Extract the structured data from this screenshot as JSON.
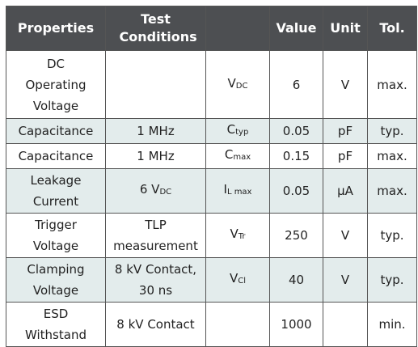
{
  "table": {
    "headers": [
      "Properties",
      "Test Conditions",
      "",
      "Value",
      "Unit",
      "Tol."
    ],
    "rows": [
      {
        "property": "DC Operating Voltage",
        "condition": "",
        "symbol": "V",
        "symbol_sub": "DC",
        "value": "6",
        "unit": "V",
        "tol": "max."
      },
      {
        "property": "Capacitance",
        "condition": "1 MHz",
        "symbol": "C",
        "symbol_sub": "typ",
        "value": "0.05",
        "unit": "pF",
        "tol": "typ."
      },
      {
        "property": "Capacitance",
        "condition": "1 MHz",
        "symbol": "C",
        "symbol_sub": "max",
        "value": "0.15",
        "unit": "pF",
        "tol": "max."
      },
      {
        "property": "Leakage Current",
        "condition": "6 V",
        "condition_sub": "DC",
        "symbol": "I",
        "symbol_sub": "L max",
        "value": "0.05",
        "unit": "µA",
        "tol": "max."
      },
      {
        "property": "Trigger Voltage",
        "condition": "TLP measurement",
        "symbol": "V",
        "symbol_sub": "Tr",
        "value": "250",
        "unit": "V",
        "tol": "typ."
      },
      {
        "property": "Clamping Voltage",
        "condition": "8 kV Contact, 30 ns",
        "symbol": "V",
        "symbol_sub": "Cl",
        "value": "40",
        "unit": "V",
        "tol": "typ."
      },
      {
        "property": "ESD Withstand",
        "condition": "8 kV Contact",
        "symbol": "",
        "symbol_sub": "",
        "value": "1000",
        "unit": "",
        "tol": "min."
      }
    ]
  }
}
